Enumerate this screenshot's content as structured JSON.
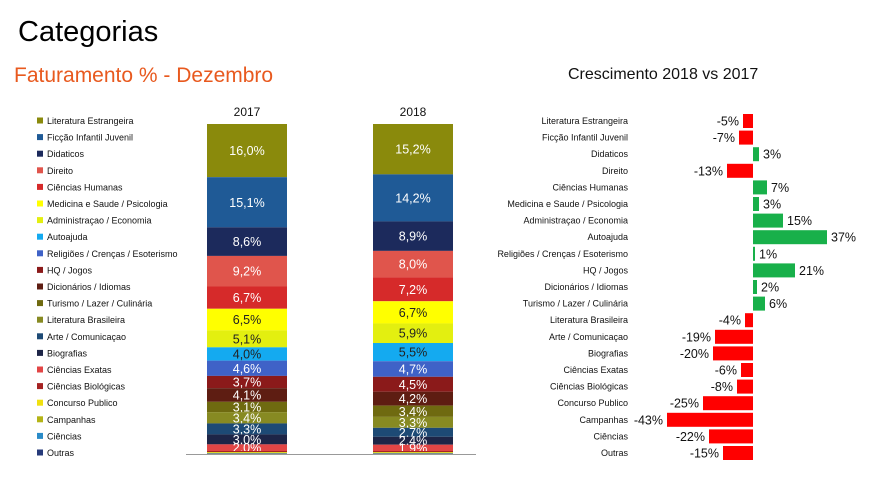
{
  "page": {
    "title": "Categorias",
    "subtitle": "Faturamento % - Dezembro",
    "growth_title": "Crescimento 2018 vs 2017"
  },
  "chart_data": [
    {
      "type": "bar",
      "stacked": true,
      "title": "Faturamento % - Dezembro",
      "categories": [
        "2017",
        "2018"
      ],
      "legend_placement": "left",
      "series": [
        {
          "name": "Literatura Estrangeira",
          "color": "#8a8a0c",
          "values": [
            16.0,
            15.2
          ],
          "labels": [
            "16,0%",
            "15,2%"
          ]
        },
        {
          "name": "Ficção Infantil Juvenil",
          "color": "#1f5a96",
          "values": [
            15.1,
            14.2
          ],
          "labels": [
            "15,1%",
            "14,2%"
          ]
        },
        {
          "name": "Didaticos",
          "color": "#1c2a5c",
          "values": [
            8.6,
            8.9
          ],
          "labels": [
            "8,6%",
            "8,9%"
          ]
        },
        {
          "name": "Direito",
          "color": "#e0554c",
          "values": [
            9.2,
            8.0
          ],
          "labels": [
            "9,2%",
            "8,0%"
          ]
        },
        {
          "name": "Ciências Humanas",
          "color": "#d62a2a",
          "values": [
            6.7,
            7.2
          ],
          "labels": [
            "6,7%",
            "7,2%"
          ]
        },
        {
          "name": "Medicina e Saude / Psicologia",
          "color": "#ffff00",
          "values": [
            6.5,
            6.7
          ],
          "labels": [
            "6,5%",
            "6,7%"
          ]
        },
        {
          "name": "Administraçao / Economia",
          "color": "#e3ef10",
          "values": [
            5.1,
            5.9
          ],
          "labels": [
            "5,1%",
            "5,9%"
          ]
        },
        {
          "name": "Autoajuda",
          "color": "#14aaf0",
          "values": [
            4.0,
            5.5
          ],
          "labels": [
            "4,0%",
            "5,5%"
          ]
        },
        {
          "name": "Religiões / Crenças / Esoterismo",
          "color": "#3f62c7",
          "values": [
            4.6,
            4.7
          ],
          "labels": [
            "4,6%",
            "4,7%"
          ]
        },
        {
          "name": "HQ / Jogos",
          "color": "#8b1a1a",
          "values": [
            3.7,
            4.5
          ],
          "labels": [
            "3,7%",
            "4,5%"
          ]
        },
        {
          "name": "Dicionários / Idiomas",
          "color": "#5e1d12",
          "values": [
            4.1,
            4.2
          ],
          "labels": [
            "4,1%",
            "4,2%"
          ]
        },
        {
          "name": "Turismo / Lazer / Culinária",
          "color": "#6f6a10",
          "values": [
            3.1,
            3.4
          ],
          "labels": [
            "3,1%",
            "3,4%"
          ]
        },
        {
          "name": "Literatura Brasileira",
          "color": "#878a22",
          "values": [
            3.4,
            3.3
          ],
          "labels": [
            "3,4%",
            "3,3%"
          ]
        },
        {
          "name": "Arte / Comunicaçao",
          "color": "#1d4a75",
          "values": [
            3.3,
            2.7
          ],
          "labels": [
            "3,3%",
            "2,7%"
          ]
        },
        {
          "name": "Biografias",
          "color": "#1d2547",
          "values": [
            3.0,
            2.4
          ],
          "labels": [
            "3,0%",
            "2,4%"
          ]
        },
        {
          "name": "Ciências Exatas",
          "color": "#e24545",
          "values": [
            2.0,
            1.9
          ],
          "labels": [
            "2,0%",
            "1,9%"
          ]
        },
        {
          "name": "Ciências Biológicas",
          "color": "#a52222",
          "values": [
            0.3,
            0.3
          ],
          "labels": [
            "",
            ""
          ]
        },
        {
          "name": "Concurso Publico",
          "color": "#f0e010",
          "values": [
            0.2,
            0.2
          ],
          "labels": [
            "",
            ""
          ]
        },
        {
          "name": "Campanhas",
          "color": "#b4b416",
          "values": [
            0.2,
            0.2
          ],
          "labels": [
            "",
            ""
          ]
        },
        {
          "name": "Ciências",
          "color": "#2a8bc8",
          "values": [
            0.1,
            0.1
          ],
          "labels": [
            "",
            ""
          ]
        },
        {
          "name": "Outras",
          "color": "#263a7a",
          "values": [
            0.1,
            0.1
          ],
          "labels": [
            "",
            ""
          ]
        }
      ]
    },
    {
      "type": "bar",
      "orientation": "horizontal",
      "title": "Crescimento 2018 vs 2017",
      "categories": [
        "Literatura Estrangeira",
        "Ficção Infantil Juvenil",
        "Didaticos",
        "Direito",
        "Ciências Humanas",
        "Medicina e Saude / Psicologia",
        "Administraçao / Economia",
        "Autoajuda",
        "Religiões / Crenças / Esoterismo",
        "HQ / Jogos",
        "Dicionários / Idiomas",
        "Turismo / Lazer / Culinária",
        "Literatura Brasileira",
        "Arte / Comunicaçao",
        "Biografias",
        "Ciências Exatas",
        "Ciências Biológicas",
        "Concurso Publico",
        "Campanhas",
        "Ciências",
        "Outras"
      ],
      "values": [
        -5,
        -7,
        3,
        -13,
        7,
        3,
        15,
        37,
        1,
        21,
        2,
        6,
        -4,
        -19,
        -20,
        -6,
        -8,
        -25,
        -43,
        -22,
        -15
      ],
      "labels": [
        "-5%",
        "-7%",
        "3%",
        "-13%",
        "7%",
        "3%",
        "15%",
        "37%",
        "1%",
        "21%",
        "2%",
        "6%",
        "-4%",
        "-19%",
        "-20%",
        "-6%",
        "-8%",
        "-25%",
        "-43%",
        "-22%",
        "-15%"
      ],
      "positive_color": "#18b04a",
      "negative_color": "#ff0000"
    }
  ]
}
